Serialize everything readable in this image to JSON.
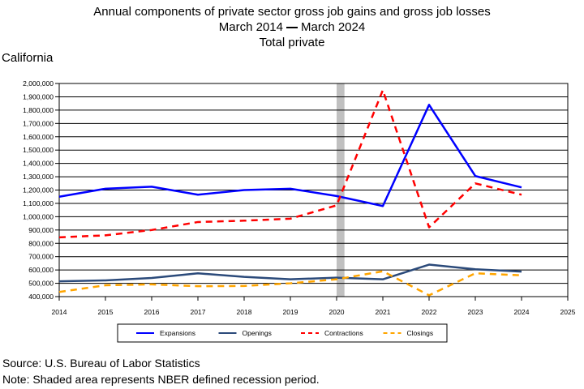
{
  "header": {
    "title_line1": "Annual components of private sector gross job gains and gross job losses",
    "title_line2_start": "March 2014",
    "title_line2_end": "March 2024",
    "title_line3": "Total private",
    "region": "California"
  },
  "footer": {
    "source": "Source: U.S. Bureau of Labor Statistics",
    "note": "Note: Shaded area represents NBER defined recession period."
  },
  "chart_data": {
    "type": "line",
    "title": "Annual components of private sector gross job gains and gross job losses",
    "x": [
      2014,
      2015,
      2016,
      2017,
      2018,
      2019,
      2020,
      2021,
      2022,
      2023,
      2024
    ],
    "xlim": [
      2014,
      2025
    ],
    "xticks": [
      "2014",
      "2015",
      "2016",
      "2017",
      "2018",
      "2019",
      "2020",
      "2021",
      "2022",
      "2023",
      "2024",
      "2025"
    ],
    "ylim": [
      400000,
      2000000
    ],
    "yticks": [
      "400,000",
      "500,000",
      "600,000",
      "700,000",
      "800,000",
      "900,000",
      "1,000,000",
      "1,100,000",
      "1,200,000",
      "1,300,000",
      "1,400,000",
      "1,500,000",
      "1,600,000",
      "1,700,000",
      "1,800,000",
      "1,900,000",
      "2,000,000"
    ],
    "grid": true,
    "legend_position": "bottom",
    "recession": [
      2020.0,
      2020.17
    ],
    "series": [
      {
        "name": "Expansions",
        "color": "#0000ff",
        "style": "solid",
        "width": 2.5,
        "values": [
          1150000,
          1210000,
          1225000,
          1165000,
          1200000,
          1210000,
          1155000,
          1080000,
          1840000,
          1305000,
          1220000
        ]
      },
      {
        "name": "Openings",
        "color": "#2b4a7a",
        "style": "solid",
        "width": 2.5,
        "values": [
          515000,
          522000,
          540000,
          575000,
          548000,
          530000,
          542000,
          530000,
          640000,
          605000,
          588000
        ]
      },
      {
        "name": "Contractions",
        "color": "#ff0000",
        "style": "dash",
        "width": 2.5,
        "values": [
          845000,
          860000,
          900000,
          960000,
          970000,
          985000,
          1085000,
          1950000,
          920000,
          1250000,
          1165000
        ]
      },
      {
        "name": "Closings",
        "color": "#ffa500",
        "style": "dash",
        "width": 2.5,
        "values": [
          435000,
          485000,
          492000,
          478000,
          480000,
          500000,
          530000,
          590000,
          410000,
          575000,
          560000
        ]
      }
    ]
  }
}
